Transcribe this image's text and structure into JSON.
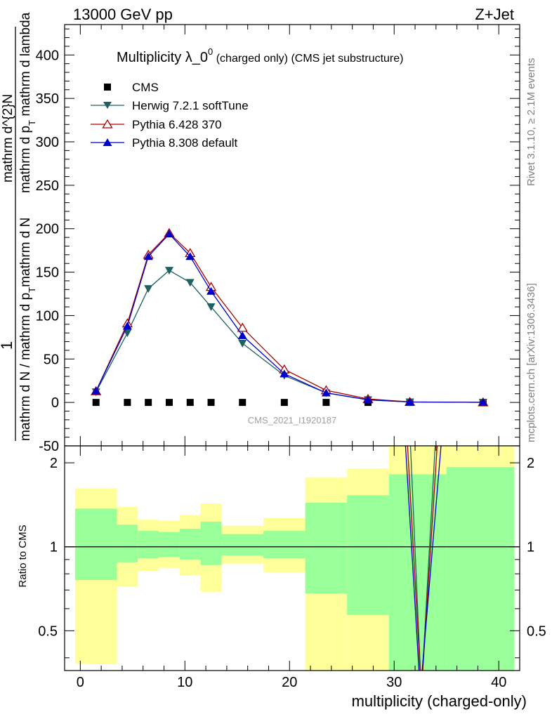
{
  "header": {
    "left": "13000 GeV pp",
    "right": "Z+Jet"
  },
  "side_labels": {
    "top": "Rivet 3.1.10, ≥ 2.1M events",
    "bottom": "mcplots.cern.ch [arXiv:1306.3436]"
  },
  "chart_data": [
    {
      "type": "scatter",
      "panel": "main",
      "title_main": "Multiplicity λ_0",
      "title_sup": "0",
      "title_rest": " (charged only) (CMS jet substructure)",
      "ylabel_top": "1",
      "ylabel_main": "mathrm d N / mathrm d p",
      "ylabel_sub": "T",
      "ylabel_tail": "mathrm d N",
      "ylabel2_main": "mathrm d p",
      "ylabel2_sub": "T",
      "ylabel2_tail": " mathrm d lambda",
      "ylabel_top_alt": "mathrm d^{2}N",
      "watermark": "CMS_2021_I1920187",
      "ylim": [
        -50,
        435
      ],
      "xlim": [
        -1.5,
        42
      ],
      "yticks": [
        -50,
        0,
        50,
        100,
        150,
        200,
        250,
        300,
        350,
        400
      ],
      "grid": false,
      "legend_position": "top-left",
      "series": [
        {
          "name": "CMS",
          "color": "#000000",
          "marker": "square",
          "x": [
            1.5,
            4.5,
            6.5,
            8.5,
            10.5,
            12.5,
            15.5,
            19.5,
            23.5,
            27.5,
            31.5,
            38.5
          ],
          "y": [
            0,
            0,
            0,
            0,
            0,
            0,
            0,
            0,
            0,
            0,
            0,
            0
          ]
        },
        {
          "name": "Herwig 7.2.1 softTune",
          "color": "#1f6060",
          "marker": "triangle-down",
          "x": [
            1.5,
            4.5,
            6.5,
            8.5,
            10.5,
            12.5,
            15.5,
            19.5,
            23.5,
            27.5,
            31.5,
            38.5
          ],
          "y": [
            12,
            80,
            131,
            152,
            138,
            110,
            68,
            31,
            11,
            3,
            0.5,
            0.1
          ]
        },
        {
          "name": "Pythia 6.428 370",
          "color": "#aa0000",
          "marker": "triangle-open",
          "x": [
            1.5,
            4.5,
            6.5,
            8.5,
            10.5,
            12.5,
            15.5,
            19.5,
            23.5,
            27.5,
            31.5,
            38.5
          ],
          "y": [
            13,
            91,
            170,
            195,
            172,
            133,
            86,
            38,
            14,
            4,
            0.6,
            0.1
          ]
        },
        {
          "name": "Pythia 8.308 default",
          "color": "#0000cc",
          "marker": "triangle-up",
          "x": [
            1.5,
            4.5,
            6.5,
            8.5,
            10.5,
            12.5,
            15.5,
            19.5,
            23.5,
            27.5,
            31.5,
            38.5
          ],
          "y": [
            13,
            88,
            168,
            194,
            168,
            128,
            77,
            33,
            11,
            3,
            0.5,
            0.1
          ]
        }
      ]
    },
    {
      "type": "area",
      "panel": "ratio",
      "ylabel": "Ratio to CMS",
      "xlabel": "multiplicity (charged-only)",
      "xlim": [
        -1.5,
        42
      ],
      "ylim": [
        0.36,
        2.3
      ],
      "yscale": "log",
      "yticks": [
        0.5,
        1,
        2
      ],
      "xticks": [
        0,
        10,
        20,
        30,
        40
      ],
      "reference_line": 1,
      "band_colors": {
        "outer": "#ffff99",
        "inner": "#99ff99"
      },
      "bands": [
        {
          "xlo": -0.5,
          "xhi": 3.5,
          "outer": [
            0.38,
            1.62
          ],
          "inner": [
            0.76,
            1.37
          ]
        },
        {
          "xlo": 3.5,
          "xhi": 5.5,
          "outer": [
            0.72,
            1.39
          ],
          "inner": [
            0.88,
            1.2
          ]
        },
        {
          "xlo": 5.5,
          "xhi": 7.5,
          "outer": [
            0.82,
            1.25
          ],
          "inner": [
            0.91,
            1.14
          ]
        },
        {
          "xlo": 7.5,
          "xhi": 9.5,
          "outer": [
            0.84,
            1.24
          ],
          "inner": [
            0.92,
            1.13
          ]
        },
        {
          "xlo": 9.5,
          "xhi": 11.5,
          "outer": [
            0.79,
            1.3
          ],
          "inner": [
            0.9,
            1.16
          ]
        },
        {
          "xlo": 11.5,
          "xhi": 13.5,
          "outer": [
            0.69,
            1.43
          ],
          "inner": [
            0.86,
            1.23
          ]
        },
        {
          "xlo": 13.5,
          "xhi": 17.5,
          "outer": [
            0.87,
            1.19
          ],
          "inner": [
            0.93,
            1.11
          ]
        },
        {
          "xlo": 17.5,
          "xhi": 21.5,
          "outer": [
            0.81,
            1.27
          ],
          "inner": [
            0.91,
            1.14
          ]
        },
        {
          "xlo": 21.5,
          "xhi": 25.5,
          "outer": [
            0.3,
            1.77
          ],
          "inner": [
            0.68,
            1.44
          ]
        },
        {
          "xlo": 25.5,
          "xhi": 29.5,
          "outer": [
            0.3,
            1.91
          ],
          "inner": [
            0.57,
            1.53
          ]
        },
        {
          "xlo": 29.5,
          "xhi": 35.0,
          "outer": [
            0.3,
            2.5
          ],
          "inner": [
            0.3,
            1.82
          ]
        },
        {
          "xlo": 35.0,
          "xhi": 41.5,
          "outer": [
            0.3,
            2.5
          ],
          "inner": [
            0.3,
            1.93
          ]
        }
      ],
      "ratio_lines": [
        {
          "name": "Herwig 7.2.1 softTune",
          "color": "#1f6060",
          "points": [
            [
              31.5,
              2.6
            ],
            [
              32.6,
              0.3
            ],
            [
              34.0,
              2.6
            ]
          ]
        },
        {
          "name": "Pythia 6.428 370",
          "color": "#aa0000",
          "points": [
            [
              31.2,
              2.6
            ],
            [
              32.6,
              0.3
            ],
            [
              34.2,
              2.6
            ]
          ]
        },
        {
          "name": "Pythia 8.308 default",
          "color": "#0000cc",
          "points": [
            [
              31.0,
              2.6
            ],
            [
              32.5,
              0.3
            ],
            [
              34.6,
              2.6
            ]
          ]
        }
      ]
    }
  ]
}
